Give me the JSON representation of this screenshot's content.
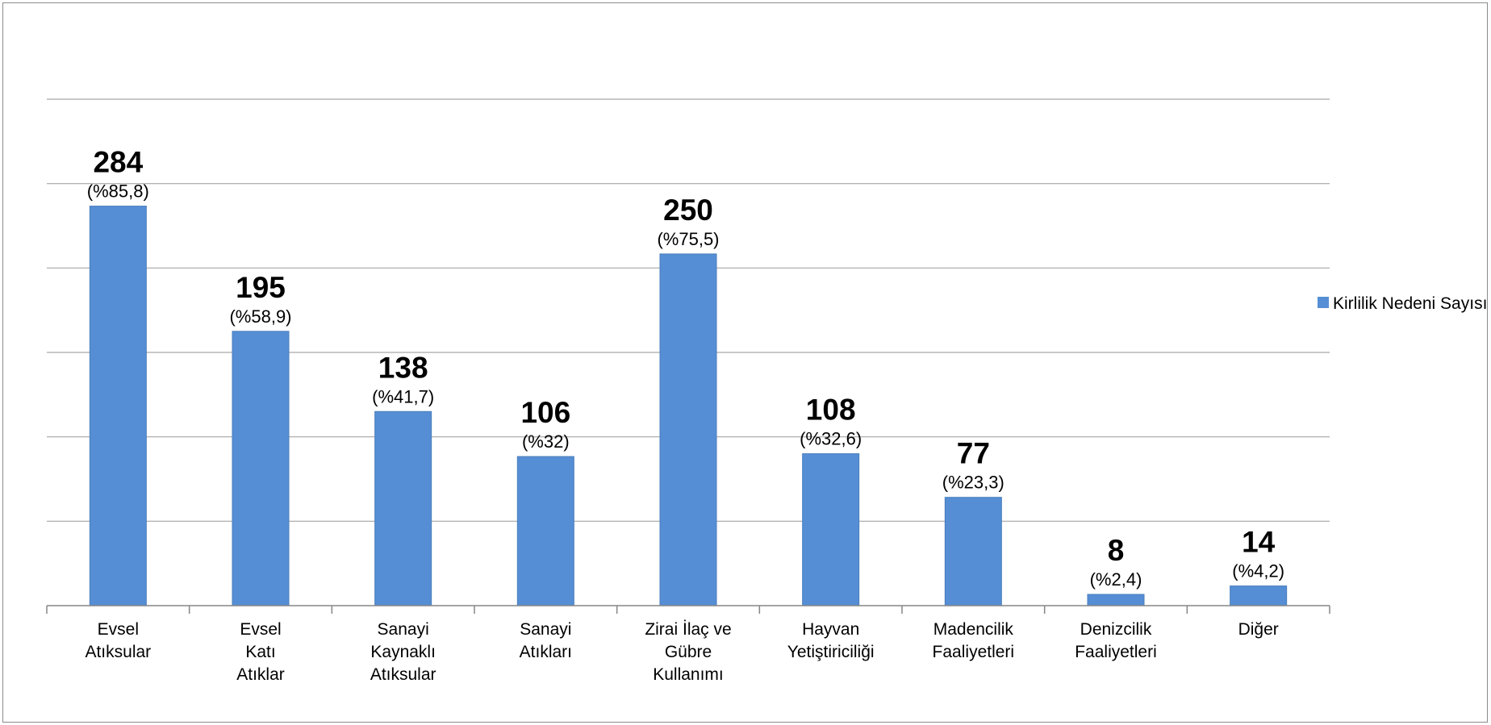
{
  "chart_data": {
    "type": "bar",
    "categories": [
      [
        "Evsel",
        "Atıksular"
      ],
      [
        "Evsel",
        "Katı",
        "Atıklar"
      ],
      [
        "Sanayi",
        "Kaynaklı",
        "Atıksular"
      ],
      [
        "Sanayi",
        "Atıkları"
      ],
      [
        "Zirai İlaç ve",
        "Gübre",
        "Kullanımı"
      ],
      [
        "Hayvan",
        "Yetiştiriciliği"
      ],
      [
        "Madencilik",
        "Faaliyetleri"
      ],
      [
        "Denizcilik",
        "Faaliyetleri"
      ],
      [
        "Diğer"
      ]
    ],
    "series": [
      {
        "name": "Kirlilik Nedeni Sayısı",
        "values": [
          284,
          195,
          138,
          106,
          250,
          108,
          77,
          8,
          14
        ],
        "percent_labels": [
          "(%85,8)",
          "(%58,9)",
          "(%41,7)",
          "(%32)",
          "(%75,5)",
          "(%32,6)",
          "(%23,3)",
          "(%2,4)",
          "(%4,2)"
        ],
        "color": "#558ed5"
      }
    ],
    "ylim": [
      0,
      360
    ],
    "gridline_step": 60,
    "grid": true,
    "legend_position": "right"
  },
  "legend": {
    "label": "Kirlilik Nedeni Sayısı"
  }
}
